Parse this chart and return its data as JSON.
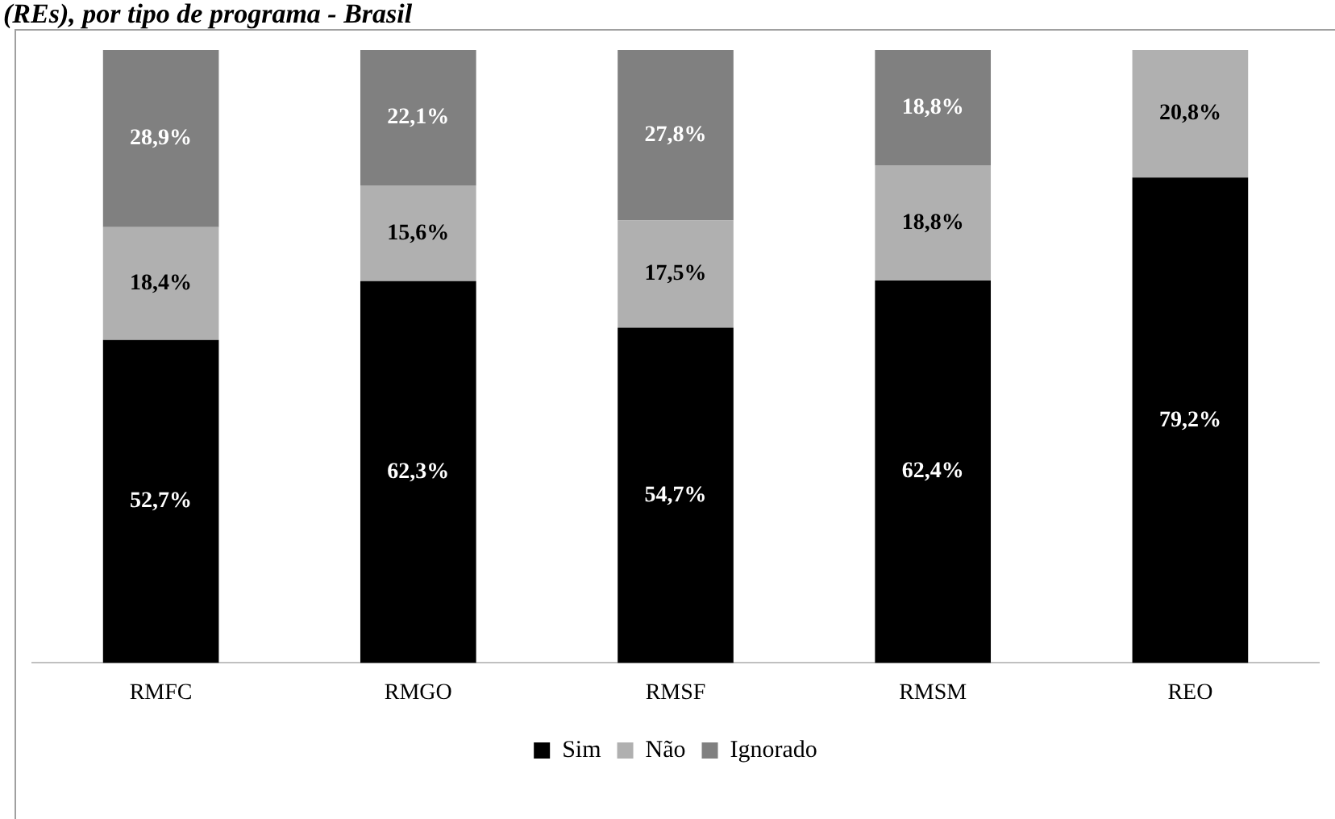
{
  "chart_data": {
    "type": "bar",
    "title": "(REs), por tipo de programa - Brasil",
    "categories": [
      "RMFC",
      "RMGO",
      "RMSF",
      "RMSM",
      "REO"
    ],
    "stacked": true,
    "tick_labels": "x",
    "grid": false,
    "legend": "bottom",
    "series": [
      {
        "name": "Sim",
        "color": "#000000",
        "values": [
          52.7,
          62.3,
          54.7,
          62.4,
          79.2
        ],
        "value_labels": [
          "52,7%",
          "62,3%",
          "54,7%",
          "62,4%",
          "79,2%"
        ]
      },
      {
        "name": "Não",
        "color": "#b0b0b0",
        "values": [
          18.4,
          15.6,
          17.5,
          18.8,
          20.8
        ],
        "value_labels": [
          "18,4%",
          "15,6%",
          "17,5%",
          "18,8%",
          "20,8%"
        ]
      },
      {
        "name": "Ignorado",
        "color": "#808080",
        "values": [
          28.9,
          22.1,
          27.8,
          18.8,
          null
        ],
        "value_labels": [
          "28,9%",
          "22,1%",
          "27,8%",
          "18,8%",
          null
        ]
      }
    ]
  }
}
